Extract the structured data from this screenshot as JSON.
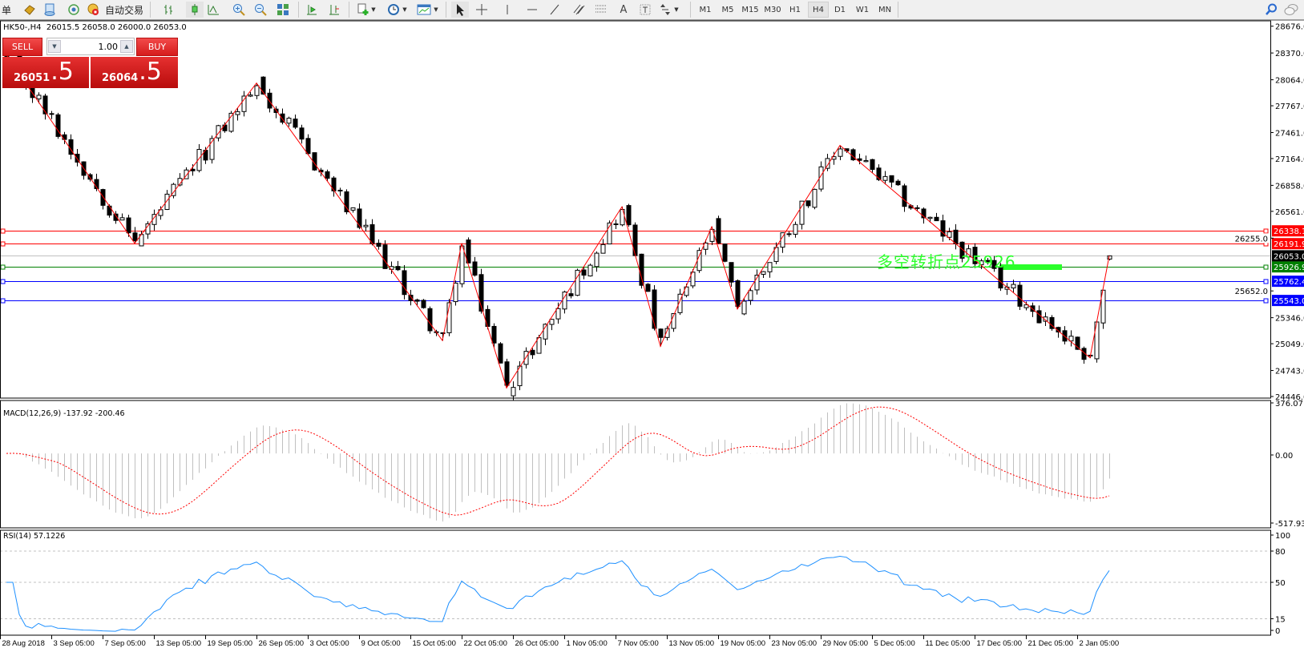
{
  "toolbar": {
    "new_order_label": "单",
    "autotrade_label": "自动交易",
    "timeframes": [
      "M1",
      "M5",
      "M15",
      "M30",
      "H1",
      "H4",
      "D1",
      "W1",
      "MN"
    ],
    "active_timeframe": "H4",
    "icons": [
      "new-order-icon",
      "market-watch-icon",
      "navigator-icon",
      "signals-icon",
      "autotrade-icon",
      "bar-chart-icon",
      "candlestick-icon",
      "line-chart-icon",
      "zoom-in-icon",
      "zoom-out-icon",
      "tile-windows-icon",
      "chart-shift-icon",
      "autoscroll-icon",
      "new-chart-icon",
      "periods-icon",
      "templates-icon",
      "cursor-icon",
      "crosshair-icon",
      "vertical-line-icon",
      "horizontal-line-icon",
      "trendline-icon",
      "equidistant-channel-icon",
      "fibonacci-icon",
      "text-icon",
      "text-label-icon",
      "arrows-icon",
      "search-icon",
      "chat-icon"
    ]
  },
  "chart": {
    "title": "HK50-,H4  26015.5 26058.0 26000.0 26053.0",
    "symbol": "HK50-",
    "period": "H4",
    "ohlc": {
      "open": 26015.5,
      "high": 26058.0,
      "low": 26000.0,
      "close": 26053.0
    },
    "price_axis": [
      "28676.0",
      "28370.0",
      "28064.0",
      "27767.0",
      "27461.0",
      "27164.0",
      "26858.0",
      "26561.0",
      "26255.0",
      "25652.0",
      "25346.0",
      "25049.0",
      "24743.0",
      "24446.0"
    ],
    "price_range": [
      24446.0,
      28676.0
    ],
    "current_price": {
      "value": "26053.0",
      "color": "#000000"
    },
    "levels": [
      {
        "value": "26338.1",
        "color": "#ff0000"
      },
      {
        "value": "26191.9",
        "color": "#ff0000"
      },
      {
        "value": "25926.9",
        "color": "#008000"
      },
      {
        "value": "25762.4",
        "color": "#0000ff"
      },
      {
        "value": "25543.0",
        "color": "#0000ff"
      }
    ],
    "annotation": {
      "text": "多空转折点25926",
      "color": "#2bff2b"
    },
    "zigzag_pivots": [
      {
        "bar": 0,
        "price": 28350
      },
      {
        "bar": 20,
        "price": 26196
      },
      {
        "bar": 39,
        "price": 28026
      },
      {
        "bar": 68,
        "price": 25085
      },
      {
        "bar": 71,
        "price": 26196
      },
      {
        "bar": 78,
        "price": 24544
      },
      {
        "bar": 96,
        "price": 26613
      },
      {
        "bar": 102,
        "price": 25019
      },
      {
        "bar": 110,
        "price": 26385
      },
      {
        "bar": 114,
        "price": 25445
      },
      {
        "bar": 130,
        "price": 27315
      },
      {
        "bar": 169,
        "price": 24888
      },
      {
        "bar": 172,
        "price": 26053
      }
    ],
    "bullish_color": "#ffffff",
    "bearish_color": "#000000",
    "zigzag_color": "#ff0000"
  },
  "trade_panel": {
    "sell_label": "SELL",
    "buy_label": "BUY",
    "volume": "1.00",
    "sell_price_main": "26051",
    "sell_price_frac": ".5",
    "buy_price_main": "26064",
    "buy_price_frac": ".5"
  },
  "macd": {
    "label": "MACD(12,26,9) -137.92 -200.46",
    "axis": [
      "376.07",
      "0.00",
      "-517.93"
    ],
    "range": [
      -517.93,
      376.07
    ],
    "histogram_color": "#c0c0c0",
    "signal_color": "#ff0000"
  },
  "rsi": {
    "label": "RSI(14) 57.1226",
    "axis": [
      "100",
      "80",
      "50",
      "15",
      "0"
    ],
    "levels": [
      80,
      50,
      15
    ],
    "line_color": "#1e90ff"
  },
  "time_axis": [
    "28 Aug 2018",
    "3 Sep 05:00",
    "7 Sep 05:00",
    "13 Sep 05:00",
    "19 Sep 05:00",
    "26 Sep 05:00",
    "3 Oct 05:00",
    "9 Oct 05:00",
    "15 Oct 05:00",
    "22 Oct 05:00",
    "26 Oct 05:00",
    "1 Nov 05:00",
    "7 Nov 05:00",
    "13 Nov 05:00",
    "19 Nov 05:00",
    "23 Nov 05:00",
    "29 Nov 05:00",
    "5 Dec 05:00",
    "11 Dec 05:00",
    "17 Dec 05:00",
    "21 Dec 05:00",
    "2 Jan 05:00"
  ]
}
